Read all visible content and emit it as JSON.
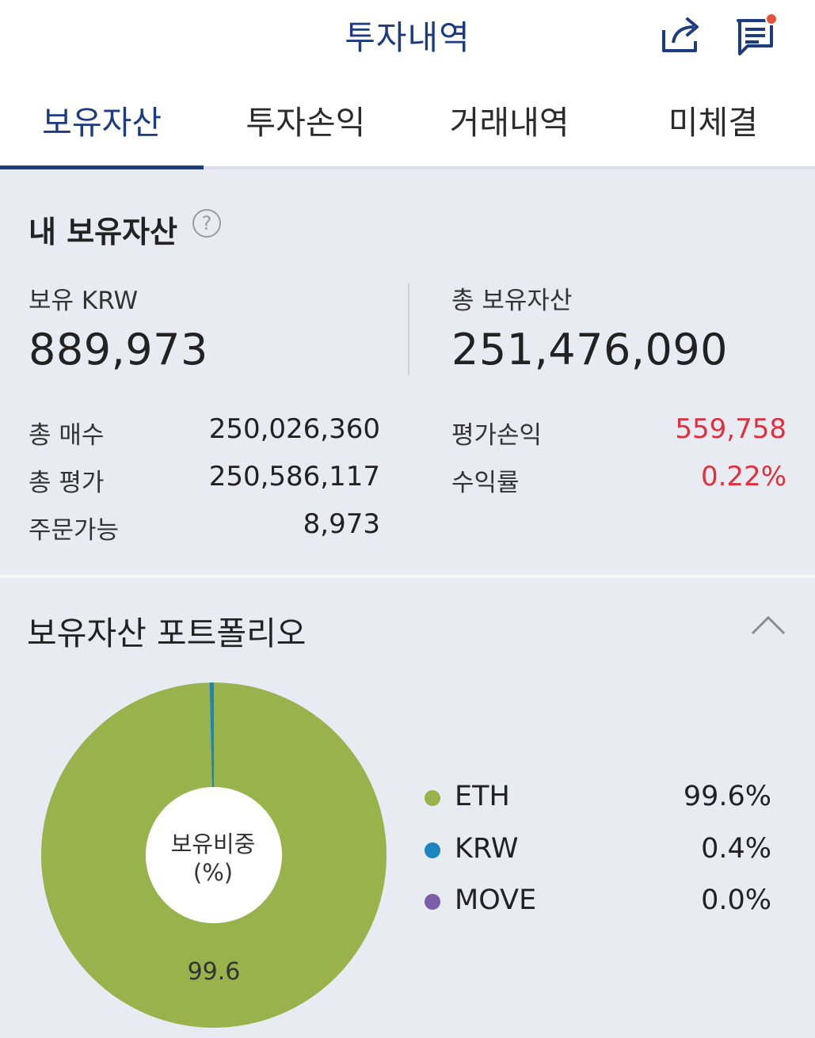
{
  "header": {
    "title": "투자내역",
    "share_icon": "share-icon",
    "notice_icon": "notice-icon",
    "notice_badge_color": "#e2553a"
  },
  "tabs": [
    {
      "label": "보유자산",
      "active": true
    },
    {
      "label": "투자손익",
      "active": false
    },
    {
      "label": "거래내역",
      "active": false
    },
    {
      "label": "미체결",
      "active": false
    }
  ],
  "summary": {
    "title": "내 보유자산",
    "help_symbol": "?",
    "krw_label": "보유 KRW",
    "krw_value": "889,973",
    "total_label": "총 보유자산",
    "total_value": "251,476,090",
    "rows_left": [
      {
        "label": "총 매수",
        "value": "250,026,360"
      },
      {
        "label": "총 평가",
        "value": "250,586,117"
      },
      {
        "label": "주문가능",
        "value": "8,973"
      }
    ],
    "rows_right": [
      {
        "label": "평가손익",
        "value": "559,758"
      },
      {
        "label": "수익률",
        "value": "0.22%"
      }
    ]
  },
  "portfolio": {
    "title": "보유자산 포트폴리오",
    "center_label_line1": "보유비중",
    "center_label_line2": "(%)",
    "slice_label": "99.6"
  },
  "colors": {
    "accent": "#1c3b80",
    "positive": "#e0303e",
    "eth": "#98b24c",
    "krw": "#1a86bd",
    "move": "#7a5fa8"
  },
  "chart_data": {
    "type": "pie",
    "categories": [
      "ETH",
      "KRW",
      "MOVE"
    ],
    "values": [
      99.6,
      0.4,
      0.0
    ],
    "labels": [
      "99.6%",
      "0.4%",
      "0.0%"
    ],
    "colors": [
      "#98b24c",
      "#1a86bd",
      "#7a5fa8"
    ],
    "title": "",
    "legend": "right"
  }
}
